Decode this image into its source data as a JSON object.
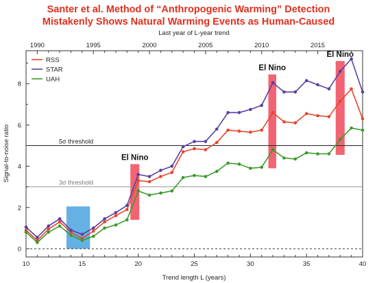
{
  "header": {
    "title_line1": "Santer et al. Method of “Anthropogenic Warming” Detection",
    "title_line2": "Mistakenly Shows Natural Warming Events as Human-Caused"
  },
  "chart_data": {
    "type": "line",
    "xlabel": "Trend length L (years)",
    "ylabel": "Signal-to-noise ratio",
    "top_axis_label": "Last year of L-year trend",
    "xlim": [
      10,
      40
    ],
    "ylim": [
      -0.4,
      9.6
    ],
    "x_ticks": [
      10,
      15,
      20,
      25,
      30,
      35,
      40
    ],
    "y_ticks": [
      0,
      2,
      4,
      6,
      8
    ],
    "top_ticks": [
      {
        "year": "1990",
        "trend_length": 11
      },
      {
        "year": "1995",
        "trend_length": 16
      },
      {
        "year": "2000",
        "trend_length": 21
      },
      {
        "year": "2005",
        "trend_length": 26
      },
      {
        "year": "2010",
        "trend_length": 31
      },
      {
        "year": "2015",
        "trend_length": 36
      }
    ],
    "x": [
      10,
      11,
      12,
      13,
      14,
      15,
      16,
      17,
      18,
      19,
      20,
      21,
      22,
      23,
      24,
      25,
      26,
      27,
      28,
      29,
      30,
      31,
      32,
      33,
      34,
      35,
      36,
      37,
      38,
      39,
      40
    ],
    "series": [
      {
        "name": "RSS",
        "color": "#e8452c",
        "values": [
          0.9,
          0.4,
          0.95,
          1.3,
          0.8,
          0.5,
          0.85,
          1.3,
          1.6,
          1.9,
          3.3,
          3.25,
          3.5,
          3.7,
          4.7,
          4.85,
          4.8,
          5.15,
          5.75,
          5.7,
          5.65,
          5.75,
          6.6,
          6.15,
          6.1,
          6.55,
          6.45,
          6.4,
          7.15,
          7.75,
          6.3
        ]
      },
      {
        "name": "STAR",
        "color": "#5a3fa3",
        "values": [
          1.05,
          0.55,
          1.1,
          1.45,
          0.9,
          0.7,
          1.0,
          1.45,
          1.75,
          2.1,
          3.6,
          3.5,
          3.8,
          4.0,
          4.95,
          5.2,
          5.2,
          5.8,
          6.6,
          6.6,
          6.75,
          6.95,
          8.05,
          7.6,
          7.6,
          8.15,
          7.95,
          7.75,
          8.6,
          9.2,
          7.6
        ]
      },
      {
        "name": "UAH",
        "color": "#3a9a2a",
        "values": [
          0.8,
          0.3,
          0.8,
          1.1,
          0.65,
          0.4,
          0.6,
          1.0,
          1.15,
          1.4,
          2.8,
          2.6,
          2.7,
          2.8,
          3.45,
          3.55,
          3.5,
          3.75,
          4.15,
          4.1,
          3.9,
          3.95,
          4.8,
          4.4,
          4.35,
          4.65,
          4.6,
          4.6,
          5.3,
          5.85,
          5.75
        ]
      }
    ],
    "thresholds": [
      {
        "label": "5σ threshold",
        "value": 5
      },
      {
        "label": "3σ threshold",
        "value": 3
      }
    ],
    "highlight_boxes": [
      {
        "x0": 13.6,
        "x1": 15.7,
        "y0": 0.0,
        "y1": 2.05,
        "color": "#4aa3df",
        "label": ""
      },
      {
        "x0": 19.3,
        "x1": 20.1,
        "y0": 1.4,
        "y1": 4.1,
        "color": "#f0495a",
        "label": "El Nino"
      },
      {
        "x0": 31.6,
        "x1": 32.3,
        "y0": 3.9,
        "y1": 8.45,
        "color": "#f0495a",
        "label": "El Nino"
      },
      {
        "x0": 37.6,
        "x1": 38.4,
        "y0": 4.55,
        "y1": 9.1,
        "color": "#f0495a",
        "label": "El Nino"
      }
    ],
    "legend_position": "top-left",
    "grid": false
  }
}
